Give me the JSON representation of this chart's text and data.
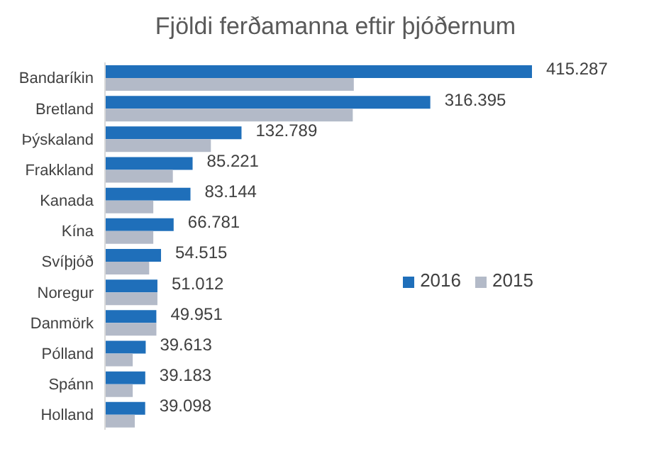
{
  "chart_data": {
    "type": "bar",
    "orientation": "horizontal",
    "title": "Fjöldi ferðamanna eftir þjóðernum",
    "categories": [
      "Bandaríkin",
      "Bretland",
      "Þýskaland",
      "Frakkland",
      "Kanada",
      "Kína",
      "Svíþjóð",
      "Noregur",
      "Danmörk",
      "Pólland",
      "Spánn",
      "Holland"
    ],
    "series": [
      {
        "name": "2016",
        "color": "#1f6fba",
        "values": [
          415287,
          316395,
          132789,
          85221,
          83144,
          66781,
          54515,
          51012,
          49951,
          39613,
          39183,
          39098
        ],
        "value_labels": [
          "415.287",
          "316.395",
          "132.789",
          "85.221",
          "83.144",
          "66.781",
          "54.515",
          "51.012",
          "49.951",
          "39.613",
          "39.183",
          "39.098"
        ]
      },
      {
        "name": "2015",
        "color": "#b3bac8",
        "values": [
          242000,
          241000,
          103000,
          66000,
          47000,
          47000,
          43000,
          51000,
          50000,
          27000,
          27000,
          29000
        ]
      }
    ],
    "legend": "right"
  }
}
